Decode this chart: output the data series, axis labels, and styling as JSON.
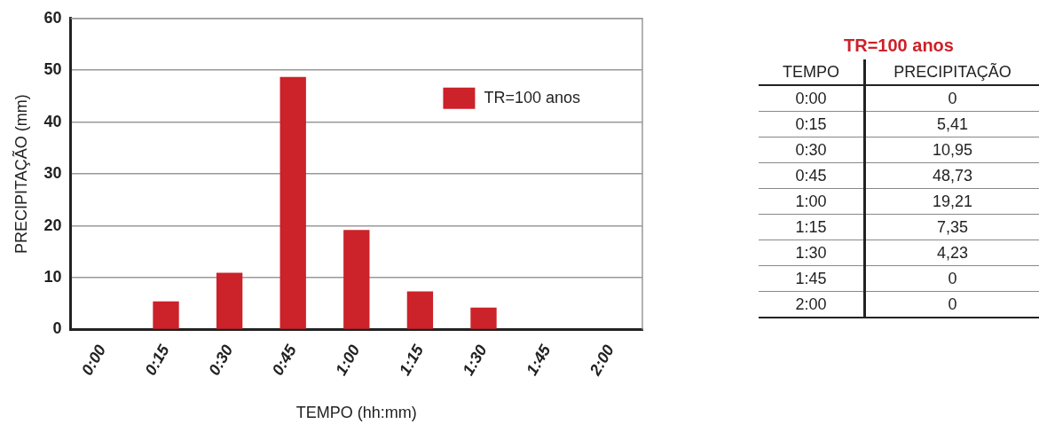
{
  "chart_data": {
    "type": "bar",
    "title": "TR=100 anos",
    "xlabel": "TEMPO (hh:mm)",
    "ylabel": "PRECIPITAÇÃO (mm)",
    "categories": [
      "0:00",
      "0:15",
      "0:30",
      "0:45",
      "1:00",
      "1:15",
      "1:30",
      "1:45",
      "2:00"
    ],
    "series": [
      {
        "name": "TR=100 anos",
        "color": "#cc2229",
        "values": [
          0,
          5.41,
          10.95,
          48.73,
          19.21,
          7.35,
          4.23,
          0,
          0
        ]
      }
    ],
    "ylim": [
      0,
      60
    ],
    "yticks": [
      0,
      10,
      20,
      30,
      40,
      50,
      60
    ],
    "grid": "y",
    "legend": "top right",
    "annotations": [
      "TEMPO",
      "PRECIPITAÇÃO",
      "0:00",
      "0",
      "0:15",
      "5,41",
      "0:30",
      "10,95",
      "0:45",
      "48,73",
      "1:00",
      "19,21",
      "1:15",
      "7,35",
      "1:30",
      "4,23",
      "1:45",
      "0",
      "2:00",
      "0"
    ]
  }
}
